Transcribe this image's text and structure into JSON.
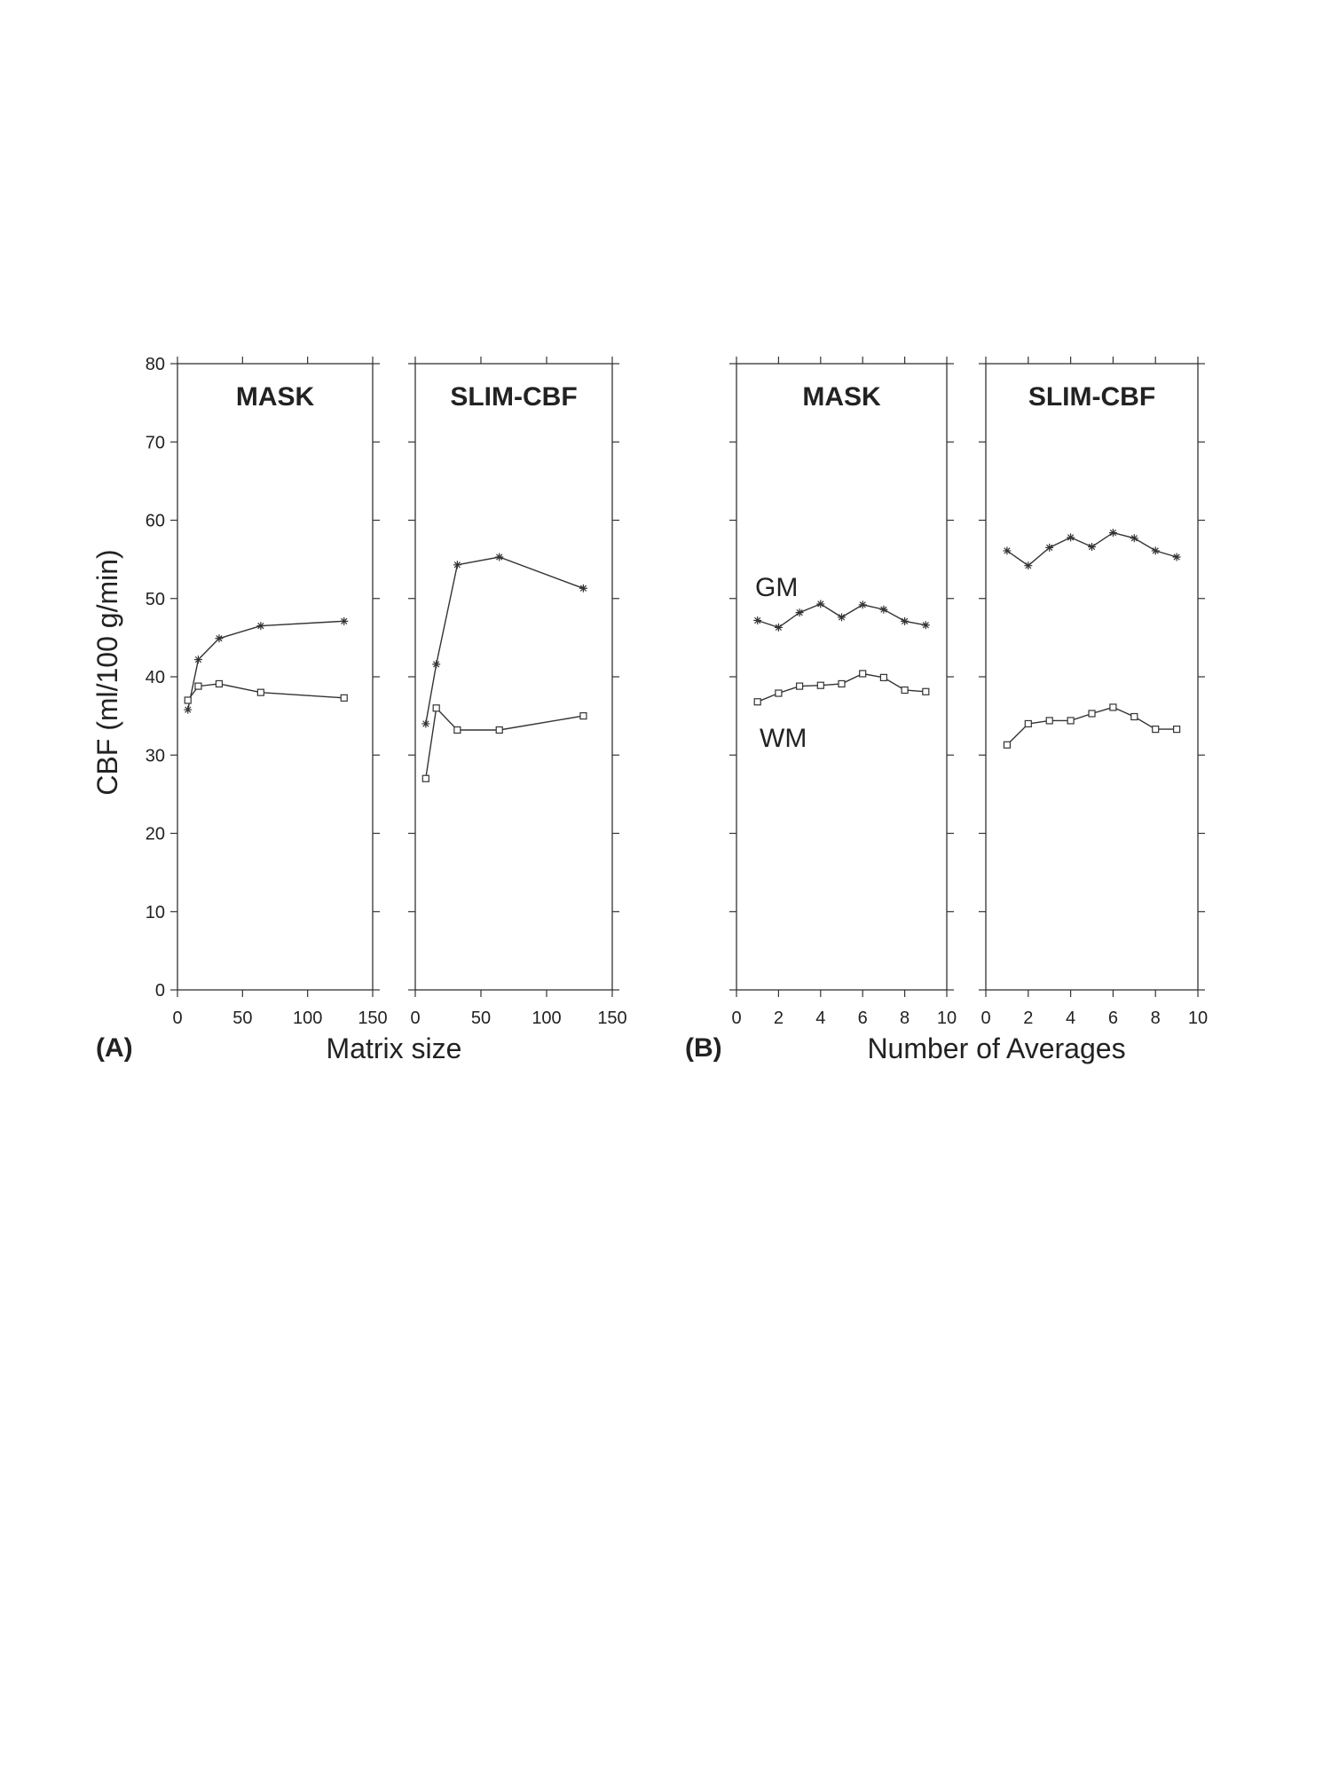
{
  "chart_data": [
    {
      "type": "line",
      "panel": "A",
      "title": "MASK",
      "xlabel": "Matrix size",
      "ylabel": "CBF (ml/100 g/min)",
      "xlim": [
        0,
        150
      ],
      "ylim": [
        0,
        80
      ],
      "xticks": [
        0,
        50,
        100,
        150
      ],
      "yticks": [
        0,
        10,
        20,
        30,
        40,
        50,
        60,
        70,
        80
      ],
      "series": [
        {
          "name": "GM",
          "marker": "star",
          "x": [
            8,
            16,
            32,
            64,
            128
          ],
          "values": [
            35.8,
            42.2,
            44.9,
            46.5,
            47.1
          ]
        },
        {
          "name": "WM",
          "marker": "square",
          "x": [
            8,
            16,
            32,
            64,
            128
          ],
          "values": [
            37.0,
            38.8,
            39.1,
            38.0,
            37.3
          ]
        }
      ]
    },
    {
      "type": "line",
      "panel": "A",
      "title": "SLIM-CBF",
      "xlabel": "Matrix size",
      "xlim": [
        0,
        150
      ],
      "ylim": [
        0,
        80
      ],
      "xticks": [
        0,
        50,
        100,
        150
      ],
      "series": [
        {
          "name": "GM",
          "marker": "star",
          "x": [
            8,
            16,
            32,
            64,
            128
          ],
          "values": [
            34.0,
            41.6,
            54.3,
            55.3,
            51.3
          ]
        },
        {
          "name": "WM",
          "marker": "square",
          "x": [
            8,
            16,
            32,
            64,
            128
          ],
          "values": [
            27.0,
            36.0,
            33.2,
            33.2,
            35.0
          ]
        }
      ]
    },
    {
      "type": "line",
      "panel": "B",
      "title": "MASK",
      "xlabel": "Number of Averages",
      "xlim": [
        0,
        10
      ],
      "ylim": [
        0,
        80
      ],
      "xticks": [
        0,
        2,
        4,
        6,
        8,
        10
      ],
      "series": [
        {
          "name": "GM",
          "marker": "star",
          "x": [
            1,
            2,
            3,
            4,
            5,
            6,
            7,
            8,
            9
          ],
          "values": [
            47.2,
            46.3,
            48.2,
            49.3,
            47.6,
            49.2,
            48.6,
            47.1,
            46.6
          ]
        },
        {
          "name": "WM",
          "marker": "square",
          "x": [
            1,
            2,
            3,
            4,
            5,
            6,
            7,
            8,
            9
          ],
          "values": [
            36.8,
            37.9,
            38.8,
            38.9,
            39.1,
            40.4,
            39.9,
            38.3,
            38.1
          ]
        }
      ]
    },
    {
      "type": "line",
      "panel": "B",
      "title": "SLIM-CBF",
      "xlabel": "Number of Averages",
      "xlim": [
        0,
        10
      ],
      "ylim": [
        0,
        80
      ],
      "xticks": [
        0,
        2,
        4,
        6,
        8,
        10
      ],
      "series": [
        {
          "name": "GM",
          "marker": "star",
          "x": [
            1,
            2,
            3,
            4,
            5,
            6,
            7,
            8,
            9
          ],
          "values": [
            56.1,
            54.2,
            56.5,
            57.8,
            56.6,
            58.4,
            57.7,
            56.1,
            55.3
          ]
        },
        {
          "name": "WM",
          "marker": "square",
          "x": [
            1,
            2,
            3,
            4,
            5,
            6,
            7,
            8,
            9
          ],
          "values": [
            31.3,
            34.0,
            34.4,
            34.4,
            35.3,
            36.1,
            34.9,
            33.3,
            33.3
          ]
        }
      ]
    }
  ],
  "labels": {
    "ylabel": "CBF (ml/100 g/min)",
    "panel_a_letter": "(A)",
    "panel_b_letter": "(B)",
    "panel_a_xlabel": "Matrix size",
    "panel_b_xlabel": "Number of Averages",
    "gm_label": "GM",
    "wm_label": "WM"
  },
  "colors": {
    "ink": "#333333",
    "background": "#ffffff"
  }
}
